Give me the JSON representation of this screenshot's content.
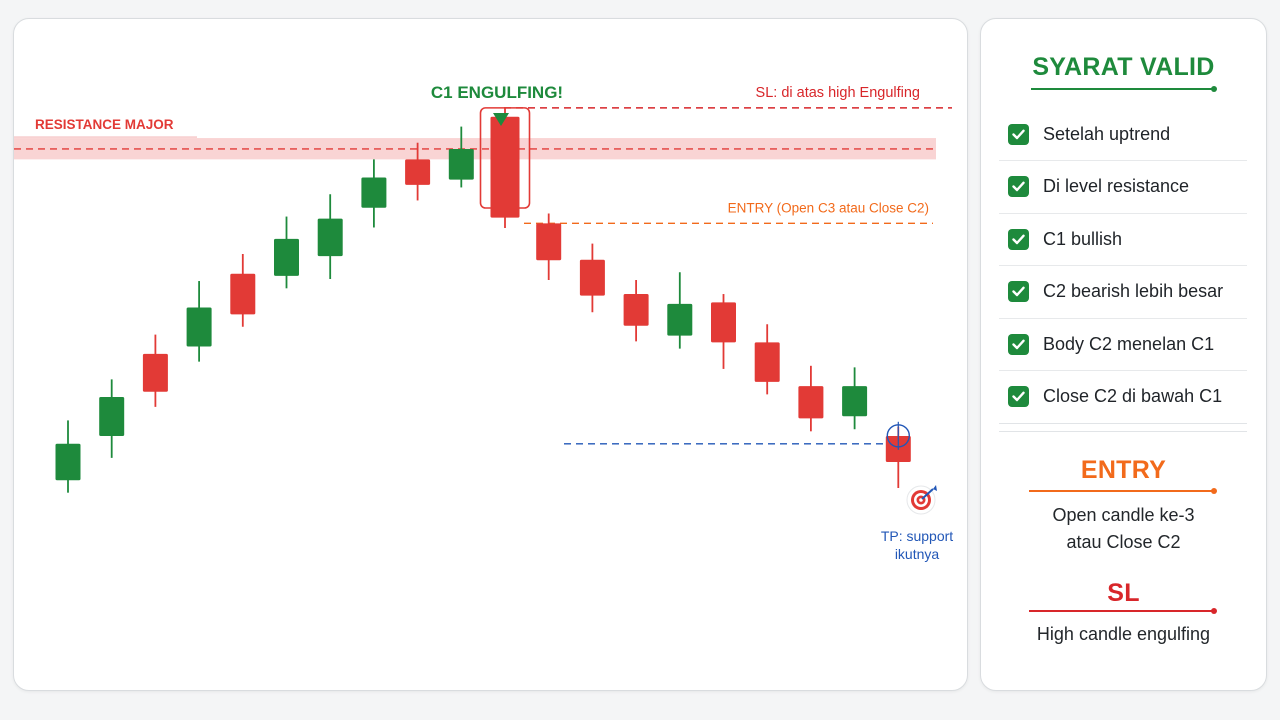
{
  "chart_data": {
    "type": "candlestick",
    "title": "C1 ENGULFING!",
    "resistance_label": "RESISTANCE MAJOR",
    "sl_label": "SL: di atas high Engulfing",
    "entry_label": "ENTRY (Open C3 atau Close C2)",
    "tp_label_line1": "TP: support",
    "tp_label_line2": "ikutnya",
    "y_range": [
      0,
      100
    ],
    "resistance_level": 82.7,
    "resistance_zone": [
      80.7,
      84.8
    ],
    "sl_level": 90.6,
    "entry_level": 68.4,
    "tp_level": 26.0,
    "colors": {
      "bull": "#1e8a3c",
      "bear": "#e23a36",
      "sl": "#d8262a",
      "entry": "#f26a1b",
      "tp": "#2257b7",
      "resistance": "#e23a36"
    },
    "candles": [
      {
        "open": 19.0,
        "close": 26.0,
        "high": 30.5,
        "low": 16.6,
        "dir": "bull"
      },
      {
        "open": 27.5,
        "close": 35.0,
        "high": 38.4,
        "low": 23.3,
        "dir": "bull"
      },
      {
        "open": 36.0,
        "close": 43.3,
        "high": 47.0,
        "low": 33.1,
        "dir": "bear"
      },
      {
        "open": 44.7,
        "close": 52.2,
        "high": 57.3,
        "low": 41.8,
        "dir": "bull"
      },
      {
        "open": 50.9,
        "close": 58.7,
        "high": 62.5,
        "low": 48.5,
        "dir": "bear"
      },
      {
        "open": 58.3,
        "close": 65.4,
        "high": 69.7,
        "low": 55.9,
        "dir": "bull"
      },
      {
        "open": 62.1,
        "close": 69.3,
        "high": 74.0,
        "low": 57.7,
        "dir": "bull"
      },
      {
        "open": 71.4,
        "close": 77.2,
        "high": 80.7,
        "low": 67.6,
        "dir": "bull"
      },
      {
        "open": 75.8,
        "close": 80.7,
        "high": 83.9,
        "low": 72.8,
        "dir": "bear"
      },
      {
        "open": 76.8,
        "close": 82.7,
        "high": 87.0,
        "low": 75.3,
        "dir": "bull"
      },
      {
        "open": 88.9,
        "close": 69.5,
        "high": 90.6,
        "low": 67.5,
        "dir": "bear",
        "highlight": true
      },
      {
        "open": 68.4,
        "close": 61.3,
        "high": 70.3,
        "low": 57.5,
        "dir": "bear"
      },
      {
        "open": 61.4,
        "close": 54.5,
        "high": 64.5,
        "low": 51.3,
        "dir": "bear"
      },
      {
        "open": 54.8,
        "close": 48.7,
        "high": 57.5,
        "low": 45.7,
        "dir": "bear"
      },
      {
        "open": 52.9,
        "close": 46.8,
        "high": 59.0,
        "low": 44.3,
        "dir": "bull"
      },
      {
        "open": 53.2,
        "close": 45.5,
        "high": 54.8,
        "low": 40.4,
        "dir": "bear"
      },
      {
        "open": 45.5,
        "close": 37.9,
        "high": 49.0,
        "low": 35.5,
        "dir": "bear"
      },
      {
        "open": 37.1,
        "close": 30.9,
        "high": 41.0,
        "low": 28.4,
        "dir": "bear"
      },
      {
        "open": 31.3,
        "close": 37.1,
        "high": 40.7,
        "low": 28.8,
        "dir": "bull"
      },
      {
        "open": 27.5,
        "close": 22.5,
        "high": 29.3,
        "low": 17.5,
        "dir": "bear"
      }
    ]
  },
  "side": {
    "title": "SYARAT VALID",
    "conditions": [
      "Setelah uptrend",
      "Di level resistance",
      "C1 bullish",
      "C2 bearish lebih besar",
      "Body C2 menelan C1",
      "Close C2 di bawah C1"
    ],
    "entry_title": "ENTRY",
    "entry_text_line1": "Open candle ke-3",
    "entry_text_line2": "atau Close C2",
    "sl_title": "SL",
    "sl_text": "High candle engulfing",
    "colors": {
      "title": "#1e8a3c",
      "entry": "#f26a1b",
      "sl": "#d8262a",
      "check": "#1e8a3c"
    }
  }
}
